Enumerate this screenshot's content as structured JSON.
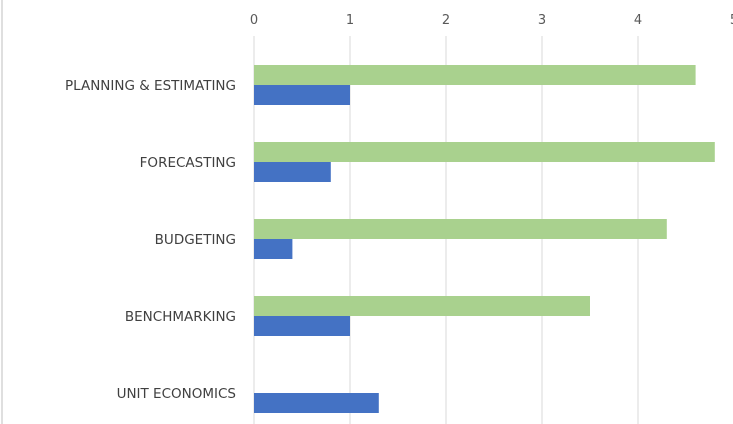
{
  "chart_data": {
    "type": "bar",
    "orientation": "horizontal",
    "categories": [
      "PLANNING & ESTIMATING",
      "FORECASTING",
      "BUDGETING",
      "BENCHMARKING",
      "UNIT ECONOMICS"
    ],
    "x_ticks": [
      "0",
      "1",
      "2",
      "3",
      "4",
      "5"
    ],
    "xlim": [
      0,
      5
    ],
    "x_axis_position": "top",
    "grid": true,
    "legend": "none",
    "series": [
      {
        "color": "#A9D18E",
        "values": [
          4.6,
          4.8,
          4.3,
          3.5,
          0
        ]
      },
      {
        "color": "#4472C4",
        "values": [
          1.0,
          0.8,
          0.4,
          1.0,
          1.3
        ]
      }
    ]
  }
}
